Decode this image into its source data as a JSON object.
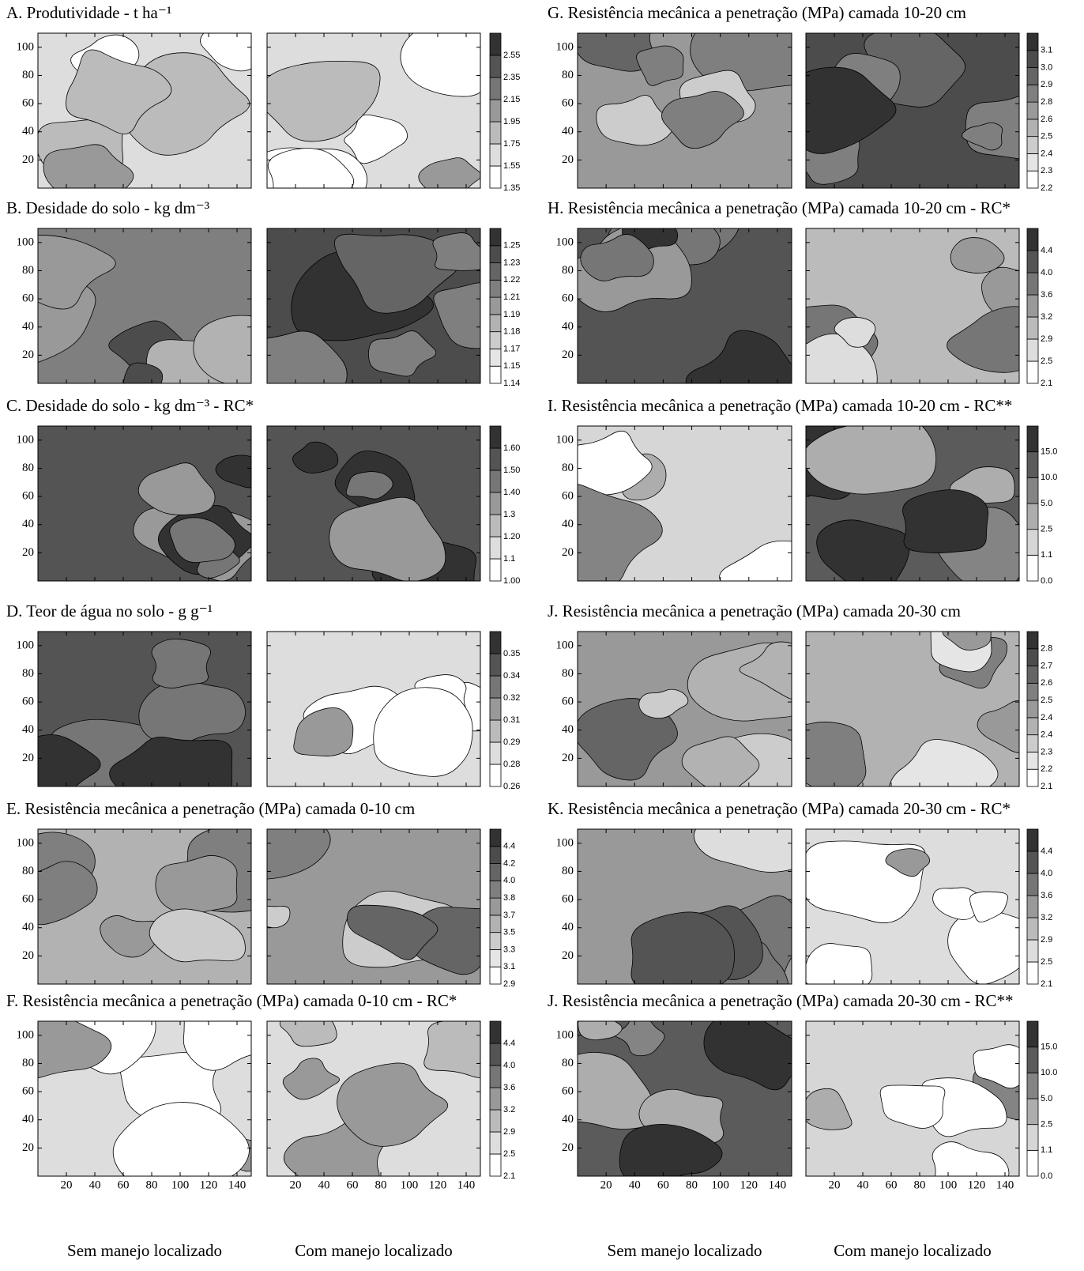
{
  "chart_data": [
    {
      "type": "contour",
      "title": "A. Produtividade - t ha⁻¹",
      "xlim": [
        0,
        150
      ],
      "ylim": [
        0,
        110
      ],
      "xticks": [
        20,
        40,
        60,
        80,
        100,
        120,
        140
      ],
      "yticks": [
        20,
        40,
        60,
        80,
        100
      ],
      "levels": [
        1.35,
        1.55,
        1.75,
        1.95,
        2.15,
        2.35,
        2.55
      ]
    },
    {
      "type": "contour",
      "title": "B. Desidade do solo - kg dm⁻³",
      "xlim": [
        0,
        150
      ],
      "ylim": [
        0,
        110
      ],
      "xticks": [
        20,
        40,
        60,
        80,
        100,
        120,
        140
      ],
      "yticks": [
        20,
        40,
        60,
        80,
        100
      ],
      "levels": [
        1.14,
        1.15,
        1.17,
        1.18,
        1.19,
        1.21,
        1.22,
        1.23,
        1.25
      ]
    },
    {
      "type": "contour",
      "title": "C. Desidade do solo - kg dm⁻³ - RC*",
      "xlim": [
        0,
        150
      ],
      "ylim": [
        0,
        110
      ],
      "xticks": [
        20,
        40,
        60,
        80,
        100,
        120,
        140
      ],
      "yticks": [
        20,
        40,
        60,
        80,
        100
      ],
      "levels": [
        {
          "value": 1,
          "label": "1.00"
        },
        1.1,
        {
          "value": 1.2,
          "label": "1.20"
        },
        1.3,
        {
          "value": 1.4,
          "label": "1.40"
        },
        {
          "value": 1.5,
          "label": "1.50"
        },
        {
          "value": 1.6,
          "label": "1.60"
        }
      ]
    },
    {
      "type": "contour",
      "title": "D. Teor de água no solo - g g⁻¹",
      "xlim": [
        0,
        150
      ],
      "ylim": [
        0,
        110
      ],
      "xticks": [
        20,
        40,
        60,
        80,
        100,
        120,
        140
      ],
      "yticks": [
        20,
        40,
        60,
        80,
        100
      ],
      "levels": [
        0.26,
        0.28,
        0.29,
        0.31,
        0.32,
        0.34,
        0.35
      ]
    },
    {
      "type": "contour",
      "title": "E. Resistência mecânica a penetração (MPa) camada 0-10 cm",
      "xlim": [
        0,
        150
      ],
      "ylim": [
        0,
        110
      ],
      "xticks": [
        20,
        40,
        60,
        80,
        100,
        120,
        140
      ],
      "yticks": [
        20,
        40,
        60,
        80,
        100
      ],
      "levels": [
        2.9,
        3.1,
        3.3,
        3.5,
        3.7,
        3.8,
        {
          "value": 4,
          "label": "4.0"
        },
        4.2,
        4.4
      ]
    },
    {
      "type": "contour",
      "title": "F. Resistência mecânica a penetração (MPa) camada 0-10  cm - RC*",
      "xlim": [
        0,
        150
      ],
      "ylim": [
        0,
        110
      ],
      "xticks": [
        20,
        40,
        60,
        80,
        100,
        120,
        140
      ],
      "yticks": [
        20,
        40,
        60,
        80,
        100
      ],
      "levels": [
        2.1,
        2.5,
        2.9,
        3.2,
        3.6,
        {
          "value": 4,
          "label": "4.0"
        },
        4.4
      ],
      "subplot_labels": [
        "Sem manejo localizado",
        "Com manejo localizado"
      ]
    },
    {
      "type": "contour",
      "title": "G. Resistência mecânica a penetração (MPa) camada 10-20 cm",
      "xlim": [
        0,
        150
      ],
      "ylim": [
        0,
        110
      ],
      "xticks": [
        20,
        40,
        60,
        80,
        100,
        120,
        140
      ],
      "yticks": [
        20,
        40,
        60,
        80,
        100
      ],
      "levels": [
        2.2,
        2.3,
        2.4,
        2.5,
        2.6,
        2.8,
        2.9,
        {
          "value": 3,
          "label": "3.0"
        },
        3.1
      ]
    },
    {
      "type": "contour",
      "title": "H. Resistência mecânica a penetração (MPa) camada 10-20 cm - RC*",
      "xlim": [
        0,
        150
      ],
      "ylim": [
        0,
        110
      ],
      "xticks": [
        20,
        40,
        60,
        80,
        100,
        120,
        140
      ],
      "yticks": [
        20,
        40,
        60,
        80,
        100
      ],
      "levels": [
        2.1,
        2.5,
        2.9,
        3.2,
        3.6,
        {
          "value": 4,
          "label": "4.0"
        },
        4.4
      ]
    },
    {
      "type": "contour",
      "title": "I. Resistência mecânica a penetração (MPa) camada 10-20 cm - RC**",
      "xlim": [
        0,
        150
      ],
      "ylim": [
        0,
        110
      ],
      "xticks": [
        20,
        40,
        60,
        80,
        100,
        120,
        140
      ],
      "yticks": [
        20,
        40,
        60,
        80,
        100
      ],
      "levels": [
        {
          "value": 0,
          "label": "0.0"
        },
        1.1,
        2.5,
        {
          "value": 5,
          "label": "5.0"
        },
        {
          "value": 10,
          "label": "10.0"
        },
        {
          "value": 15,
          "label": "15.0"
        }
      ]
    },
    {
      "type": "contour",
      "title": "J. Resistência mecânica a penetração (MPa) camada 20-30 cm",
      "xlim": [
        0,
        150
      ],
      "ylim": [
        0,
        110
      ],
      "xticks": [
        20,
        40,
        60,
        80,
        100,
        120,
        140
      ],
      "yticks": [
        20,
        40,
        60,
        80,
        100
      ],
      "levels": [
        2.1,
        2.2,
        2.3,
        2.4,
        2.4,
        2.5,
        2.6,
        2.7,
        2.8
      ]
    },
    {
      "type": "contour",
      "title": "K. Resistência mecânica a penetração (MPa) camada 20-30 cm - RC*",
      "xlim": [
        0,
        150
      ],
      "ylim": [
        0,
        110
      ],
      "xticks": [
        20,
        40,
        60,
        80,
        100,
        120,
        140
      ],
      "yticks": [
        20,
        40,
        60,
        80,
        100
      ],
      "levels": [
        2.1,
        2.5,
        2.9,
        3.2,
        3.6,
        {
          "value": 4,
          "label": "4.0"
        },
        4.4
      ]
    },
    {
      "type": "contour",
      "title": "J. Resistência mecânica a penetração (MPa) camada 20-30 cm - RC**",
      "xlim": [
        0,
        150
      ],
      "ylim": [
        0,
        110
      ],
      "xticks": [
        20,
        40,
        60,
        80,
        100,
        120,
        140
      ],
      "yticks": [
        20,
        40,
        60,
        80,
        100
      ],
      "levels": [
        {
          "value": 0,
          "label": "0.0"
        },
        1.1,
        2.5,
        {
          "value": 5,
          "label": "5.0"
        },
        {
          "value": 10,
          "label": "10.0"
        },
        {
          "value": 15,
          "label": "15.0"
        }
      ],
      "subplot_labels": [
        "Sem manejo localizado",
        "Com manejo localizado"
      ]
    }
  ]
}
